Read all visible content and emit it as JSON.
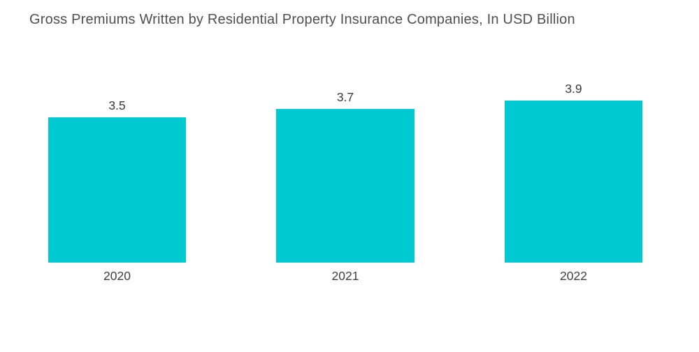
{
  "title": "Gross Premiums Written by Residential Property Insurance Companies, In USD Billion",
  "colors": {
    "bar": "#00c9d1",
    "title_text": "#4f4f4f",
    "value_text": "#3a3a3a",
    "axis_text": "#3f3f3f",
    "background": "#ffffff"
  },
  "chart_data": {
    "type": "bar",
    "title": "Gross Premiums Written by Residential Property Insurance Companies, In USD Billion",
    "categories": [
      "2020",
      "2021",
      "2022"
    ],
    "values": [
      3.5,
      3.7,
      3.9
    ],
    "value_labels": [
      "3.5",
      "3.7",
      "3.9"
    ],
    "xlabel": "",
    "ylabel": "",
    "ylim": [
      0,
      4.2
    ],
    "grid": false,
    "legend": "none",
    "axes_hidden": true,
    "bar_color": "#00c9d1"
  }
}
